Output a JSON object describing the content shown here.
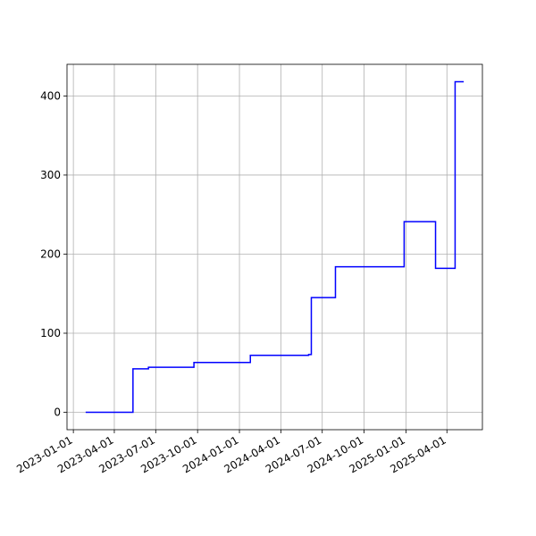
{
  "chart_data": {
    "type": "line",
    "drawstyle": "steps-post",
    "x": [
      "2023-01-28",
      "2023-05-12",
      "2023-06-15",
      "2023-09-23",
      "2024-01-25",
      "2024-06-01",
      "2024-06-07",
      "2024-07-30",
      "2024-12-28",
      "2025-03-07",
      "2025-04-19",
      "2025-05-08"
    ],
    "series": [
      {
        "color": "#0000ff",
        "values": [
          0,
          55,
          57,
          63,
          72,
          73,
          145,
          184,
          241,
          182,
          418,
          418
        ]
      }
    ],
    "xlim": [
      "2022-12-18",
      "2025-06-18"
    ],
    "xticks": [
      "2023-01-01",
      "2023-04-01",
      "2023-07-01",
      "2023-10-01",
      "2024-01-01",
      "2024-04-01",
      "2024-07-01",
      "2024-10-01",
      "2025-01-01",
      "2025-04-01"
    ],
    "ylim": [
      -22,
      440
    ],
    "yticks": [
      0,
      100,
      200,
      300,
      400
    ],
    "grid": true
  }
}
